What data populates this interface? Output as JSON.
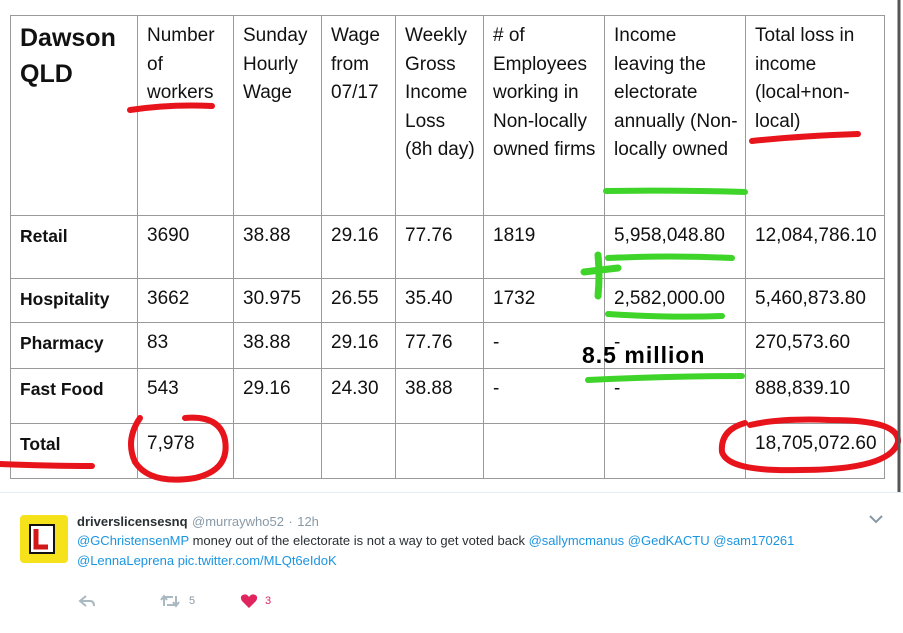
{
  "table": {
    "header": [
      "Dawson QLD",
      "Number of workers",
      "Sunday Hourly Wage",
      "Wage from 07/17",
      "Weekly Gross Income Loss (8h day)",
      "# of Employees working in Non-locally owned firms",
      "Income leaving the electorate annually (Non-locally owned",
      "Total loss in income (local+non-local)"
    ],
    "rows": [
      [
        "Retail",
        "3690",
        "38.88",
        "29.16",
        "77.76",
        "1819",
        "5,958,048.80",
        "12,084,786.10"
      ],
      [
        "Hospitality",
        "3662",
        "30.975",
        "26.55",
        "35.40",
        "1732",
        "2,582,000.00",
        "5,460,873.80"
      ],
      [
        "Pharmacy",
        "83",
        "38.88",
        "29.16",
        "77.76",
        "-",
        "-",
        "270,573.60"
      ],
      [
        "Fast Food",
        "543",
        "29.16",
        "24.30",
        "38.88",
        "-",
        "-",
        "888,839.10"
      ],
      [
        "Total",
        "7,978",
        "",
        "",
        "",
        "",
        "",
        "18,705,072.60"
      ]
    ]
  },
  "annotation": "8.5 million",
  "tweet": {
    "name": "driverslicensesnq",
    "handle": "@murraywho52",
    "separator": "·",
    "time": "12h",
    "segments": [
      {
        "text": "@GChristensenMP",
        "link": true
      },
      {
        "text": " money out of the electorate is not a way to get voted back ",
        "link": false
      },
      {
        "text": "@sallymcmanus",
        "link": true
      },
      {
        "text": " ",
        "link": false
      },
      {
        "text": "@GedKACTU",
        "link": true
      },
      {
        "text": " ",
        "link": false
      },
      {
        "text": "@sam170261",
        "link": true
      },
      {
        "text": " ",
        "link": false
      },
      {
        "text": "@LennaLeprena",
        "link": true
      },
      {
        "text": " ",
        "link": false
      },
      {
        "text": "pic.twitter.com/MLQt6eIdoK",
        "link": true
      }
    ],
    "retweets": 5,
    "likes": 3
  }
}
